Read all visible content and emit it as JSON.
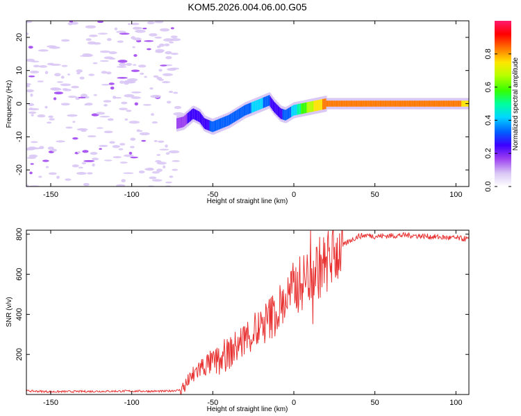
{
  "title": "KOM5.2026.004.06.00.G05",
  "chart_data": [
    {
      "type": "heatmap",
      "xlabel": "Height of straight line (km)",
      "ylabel": "Frequency (Hz)",
      "xlim": [
        -165,
        108
      ],
      "ylim": [
        -25,
        25
      ],
      "xticks": [
        -150,
        -100,
        -50,
        0,
        50,
        100
      ],
      "yticks": [
        -20,
        -10,
        0,
        10,
        20
      ],
      "xtick_labels": [
        "-150",
        "-100",
        "-50",
        "0",
        "50",
        "100"
      ],
      "ytick_labels": [
        "-20",
        "-10",
        "0",
        "10",
        "20"
      ],
      "colorbar": {
        "label": "Normalized spectral amplitude",
        "range": [
          0,
          1
        ],
        "ticks": [
          0,
          0.2,
          0.4,
          0.6,
          0.8
        ],
        "tick_labels": [
          "0.0",
          "0.2",
          "0.4",
          "0.6",
          "0.8"
        ],
        "colormap": [
          "#ffffff",
          "#d9c7f5",
          "#9b3df0",
          "#3c00ff",
          "#0060ff",
          "#00d8ff",
          "#00ff9a",
          "#36ff00",
          "#b8ff00",
          "#ffe600",
          "#ff7a00",
          "#ff0000",
          "#ff1a6e"
        ]
      },
      "ridge": {
        "x": [
          -72,
          -68,
          -62,
          -58,
          -55,
          -50,
          -45,
          -40,
          -35,
          -30,
          -25,
          -20,
          -15,
          -12,
          -8,
          -5,
          0,
          5,
          10,
          15,
          20,
          30,
          40,
          50,
          60,
          70,
          80,
          90,
          100,
          108
        ],
        "freq": [
          -6,
          -5.5,
          -3,
          -4,
          -6,
          -7,
          -6,
          -5,
          -3.5,
          -2,
          -1,
          0,
          1,
          -1,
          -3,
          -3.5,
          -2,
          -1.5,
          -1,
          -0.5,
          0,
          0,
          0,
          0,
          0,
          0,
          0,
          0,
          0,
          0
        ],
        "amplitude": [
          0.18,
          0.2,
          0.22,
          0.25,
          0.28,
          0.3,
          0.32,
          0.33,
          0.35,
          0.36,
          0.38,
          0.4,
          0.3,
          0.25,
          0.28,
          0.32,
          0.4,
          0.55,
          0.68,
          0.75,
          0.82,
          0.85,
          0.86,
          0.87,
          0.87,
          0.85,
          0.84,
          0.82,
          0.8,
          0.78
        ]
      }
    },
    {
      "type": "line",
      "xlabel": "Height of straight line (km)",
      "ylabel": "SNR (v/v)",
      "xlim": [
        -165,
        108
      ],
      "ylim": [
        0,
        820
      ],
      "xticks": [
        -150,
        -100,
        -50,
        0,
        50,
        100
      ],
      "yticks": [
        200,
        400,
        600,
        800
      ],
      "xtick_labels": [
        "-150",
        "-100",
        "-50",
        "0",
        "50",
        "100"
      ],
      "ytick_labels": [
        "200",
        "400",
        "600",
        "800"
      ],
      "series": [
        {
          "name": "SNR",
          "color": "#e83030",
          "x": [
            -165,
            -150,
            -120,
            -100,
            -80,
            -70,
            -65,
            -60,
            -55,
            -50,
            -45,
            -40,
            -35,
            -30,
            -25,
            -20,
            -15,
            -10,
            -5,
            0,
            5,
            10,
            15,
            20,
            25,
            30,
            35,
            40,
            45,
            50,
            60,
            70,
            80,
            90,
            100,
            108
          ],
          "y": [
            18,
            14,
            16,
            17,
            16,
            22,
            60,
            120,
            145,
            160,
            175,
            205,
            240,
            280,
            310,
            330,
            380,
            420,
            470,
            530,
            560,
            600,
            630,
            660,
            700,
            740,
            770,
            790,
            795,
            790,
            792,
            795,
            790,
            785,
            780,
            775
          ]
        }
      ]
    }
  ]
}
